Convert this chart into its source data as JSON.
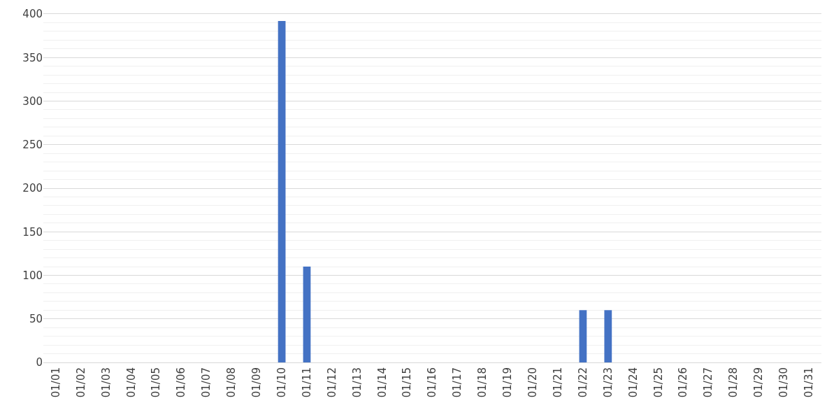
{
  "chart_data": {
    "type": "bar",
    "categories": [
      "01/01",
      "01/02",
      "01/03",
      "01/04",
      "01/05",
      "01/06",
      "01/07",
      "01/08",
      "01/09",
      "01/10",
      "01/11",
      "01/12",
      "01/13",
      "01/14",
      "01/15",
      "01/16",
      "01/17",
      "01/18",
      "01/19",
      "01/20",
      "01/21",
      "01/22",
      "01/23",
      "01/24",
      "01/25",
      "01/26",
      "01/27",
      "01/28",
      "01/29",
      "01/30",
      "01/31"
    ],
    "values": [
      0,
      0,
      0,
      0,
      0,
      0,
      0,
      0,
      0,
      392,
      110,
      0,
      0,
      0,
      0,
      0,
      0,
      0,
      0,
      0,
      0,
      60,
      60,
      0,
      0,
      0,
      0,
      0,
      0,
      0,
      0
    ],
    "color": "#4472c4",
    "ylim": [
      0,
      400
    ],
    "yticks": [
      0,
      {
        "value": 10,
        "label": null
      },
      {
        "value": 20,
        "label": null
      },
      {
        "value": 30,
        "label": null
      },
      {
        "value": 40,
        "label": null
      },
      50,
      {
        "value": 60,
        "label": null
      },
      {
        "value": 70,
        "label": null
      },
      {
        "value": 80,
        "label": null
      },
      {
        "value": 90,
        "label": null
      },
      100,
      {
        "value": 110,
        "label": null
      },
      {
        "value": 120,
        "label": null
      },
      {
        "value": 130,
        "label": null
      },
      {
        "value": 140,
        "label": null
      },
      150,
      {
        "value": 160,
        "label": null
      },
      {
        "value": 170,
        "label": null
      },
      {
        "value": 180,
        "label": null
      },
      {
        "value": 190,
        "label": null
      },
      200,
      {
        "value": 210,
        "label": null
      },
      {
        "value": 220,
        "label": null
      },
      {
        "value": 230,
        "label": null
      },
      {
        "value": 240,
        "label": null
      },
      250,
      {
        "value": 260,
        "label": null
      },
      {
        "value": 270,
        "label": null
      },
      {
        "value": 280,
        "label": null
      },
      {
        "value": 290,
        "label": null
      },
      300,
      {
        "value": 310,
        "label": null
      },
      {
        "value": 320,
        "label": null
      },
      {
        "value": 330,
        "label": null
      },
      {
        "value": 340,
        "label": null
      },
      350,
      {
        "value": 360,
        "label": null
      },
      {
        "value": 370,
        "label": null
      },
      {
        "value": 380,
        "label": null
      },
      {
        "value": 390,
        "label": null
      },
      400
    ],
    "grid": "y",
    "legend": false
  }
}
